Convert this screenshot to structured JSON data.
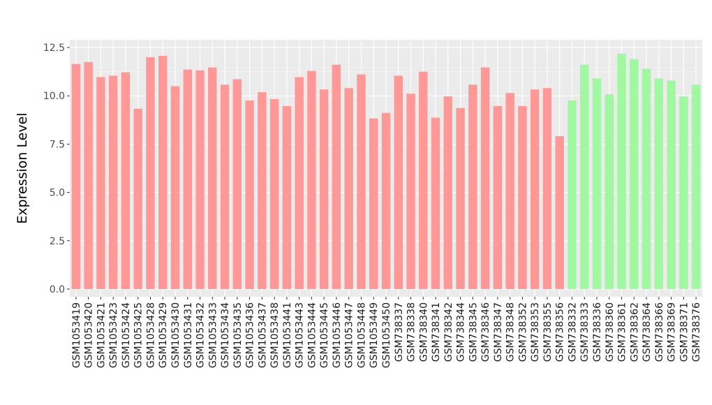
{
  "chart_data": {
    "type": "bar",
    "title": "",
    "xlabel": "",
    "ylabel": "Expression Level",
    "ylim": [
      -0.4,
      12.9
    ],
    "yticks": [
      "0.0",
      "2.5",
      "5.0",
      "7.5",
      "10.0",
      "12.5"
    ],
    "ytick_values": [
      0,
      2.5,
      5,
      7.5,
      10,
      12.5
    ],
    "grid": true,
    "legend": "none",
    "group_colors": {
      "group1": "#FF9896",
      "group2": "#A0F8A0"
    },
    "categories": [
      "GSM1053419",
      "GSM1053420",
      "GSM1053421",
      "GSM1053423",
      "GSM1053424",
      "GSM1053425",
      "GSM1053428",
      "GSM1053429",
      "GSM1053430",
      "GSM1053431",
      "GSM1053432",
      "GSM1053433",
      "GSM1053434",
      "GSM1053435",
      "GSM1053436",
      "GSM1053437",
      "GSM1053438",
      "GSM1053441",
      "GSM1053443",
      "GSM1053444",
      "GSM1053445",
      "GSM1053446",
      "GSM1053447",
      "GSM1053448",
      "GSM1053449",
      "GSM1053450",
      "GSM738337",
      "GSM738338",
      "GSM738340",
      "GSM738341",
      "GSM738342",
      "GSM738344",
      "GSM738345",
      "GSM738346",
      "GSM738347",
      "GSM738348",
      "GSM738352",
      "GSM738353",
      "GSM738355",
      "GSM738356",
      "GSM738332",
      "GSM738333",
      "GSM738336",
      "GSM738360",
      "GSM738361",
      "GSM738362",
      "GSM738364",
      "GSM738366",
      "GSM738369",
      "GSM738371",
      "GSM738376"
    ],
    "values": [
      11.65,
      11.75,
      10.97,
      11.04,
      11.22,
      9.33,
      12.0,
      12.07,
      10.5,
      11.36,
      11.32,
      11.47,
      10.58,
      10.86,
      9.76,
      10.19,
      9.83,
      9.47,
      10.97,
      11.29,
      10.33,
      11.61,
      10.4,
      11.11,
      8.83,
      9.12,
      11.04,
      10.11,
      11.25,
      8.87,
      9.97,
      9.37,
      10.58,
      11.47,
      9.47,
      10.15,
      9.47,
      10.33,
      10.4,
      7.91,
      9.76,
      11.61,
      10.9,
      10.08,
      12.18,
      11.9,
      11.4,
      10.9,
      10.79,
      9.97,
      10.58
    ],
    "groups": [
      "group1",
      "group1",
      "group1",
      "group1",
      "group1",
      "group1",
      "group1",
      "group1",
      "group1",
      "group1",
      "group1",
      "group1",
      "group1",
      "group1",
      "group1",
      "group1",
      "group1",
      "group1",
      "group1",
      "group1",
      "group1",
      "group1",
      "group1",
      "group1",
      "group1",
      "group1",
      "group1",
      "group1",
      "group1",
      "group1",
      "group1",
      "group1",
      "group1",
      "group1",
      "group1",
      "group1",
      "group1",
      "group1",
      "group1",
      "group1",
      "group2",
      "group2",
      "group2",
      "group2",
      "group2",
      "group2",
      "group2",
      "group2",
      "group2",
      "group2",
      "group2"
    ]
  }
}
